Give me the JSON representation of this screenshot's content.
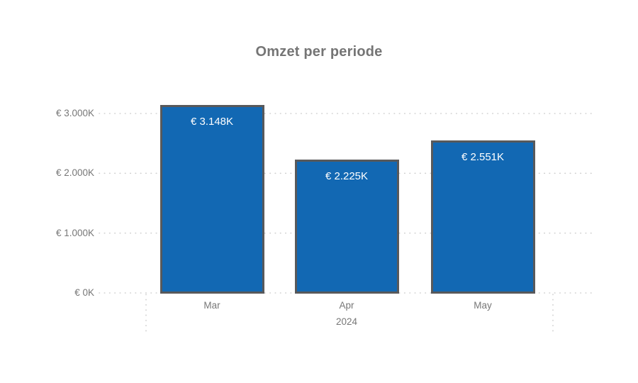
{
  "page": {
    "background": "#ffffff"
  },
  "chart_data": {
    "type": "bar",
    "title": "Omzet per periode",
    "categories": [
      "Mar",
      "Apr",
      "May"
    ],
    "x_hierarchy_label": "2024",
    "values": [
      3148,
      2225,
      2551
    ],
    "data_labels": [
      "€ 3.148K",
      "€ 2.225K",
      "€ 2.551K"
    ],
    "y_ticks": [
      {
        "label": "€ 3.000K",
        "value": 3000
      },
      {
        "label": "€ 2.000K",
        "value": 2000
      },
      {
        "label": "€ 1.000K",
        "value": 1000
      },
      {
        "label": "€ 0K",
        "value": 0
      }
    ],
    "ylim": [
      0,
      3000
    ],
    "grid": true,
    "legend": "none",
    "colors": {
      "bar_fill": "#1268B3",
      "bar_border": "#58595B",
      "axis_text": "#777777",
      "title_text": "#757575",
      "grid_line": "#d0d0d0",
      "data_label_text": "#ffffff"
    }
  }
}
